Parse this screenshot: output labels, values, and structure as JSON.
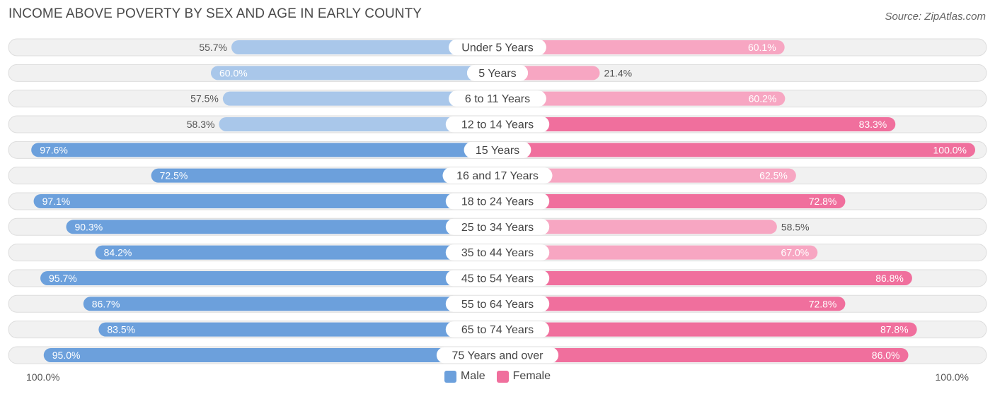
{
  "chart_data": {
    "type": "bar",
    "orientation": "horizontal-diverging",
    "title": "INCOME ABOVE POVERTY BY SEX AND AGE IN EARLY COUNTY",
    "source": "Source: ZipAtlas.com",
    "categories": [
      "Under 5 Years",
      "5 Years",
      "6 to 11 Years",
      "12 to 14 Years",
      "15 Years",
      "16 and 17 Years",
      "18 to 24 Years",
      "25 to 34 Years",
      "35 to 44 Years",
      "45 to 54 Years",
      "55 to 64 Years",
      "65 to 74 Years",
      "75 Years and over"
    ],
    "series": [
      {
        "name": "Male",
        "values": [
          55.7,
          60.0,
          57.5,
          58.3,
          97.6,
          72.5,
          97.1,
          90.3,
          84.2,
          95.7,
          86.7,
          83.5,
          95.0
        ],
        "labels": [
          "55.7%",
          "60.0%",
          "57.5%",
          "58.3%",
          "97.6%",
          "72.5%",
          "97.1%",
          "90.3%",
          "84.2%",
          "95.7%",
          "86.7%",
          "83.5%",
          "95.0%"
        ]
      },
      {
        "name": "Female",
        "values": [
          60.1,
          21.4,
          60.2,
          83.3,
          100.0,
          62.5,
          72.8,
          58.5,
          67.0,
          86.8,
          72.8,
          87.8,
          86.0
        ],
        "labels": [
          "60.1%",
          "21.4%",
          "60.2%",
          "83.3%",
          "100.0%",
          "62.5%",
          "72.8%",
          "58.5%",
          "67.0%",
          "86.8%",
          "72.8%",
          "87.8%",
          "86.0%"
        ]
      }
    ],
    "xlim": [
      0,
      100
    ],
    "axis_left_label": "100.0%",
    "axis_right_label": "100.0%",
    "legend": [
      "Male",
      "Female"
    ],
    "colors": {
      "male": "#6ca0dc",
      "female": "#f06f9d",
      "male_light": "#a9c7ea",
      "female_light": "#f7a6c2"
    }
  }
}
